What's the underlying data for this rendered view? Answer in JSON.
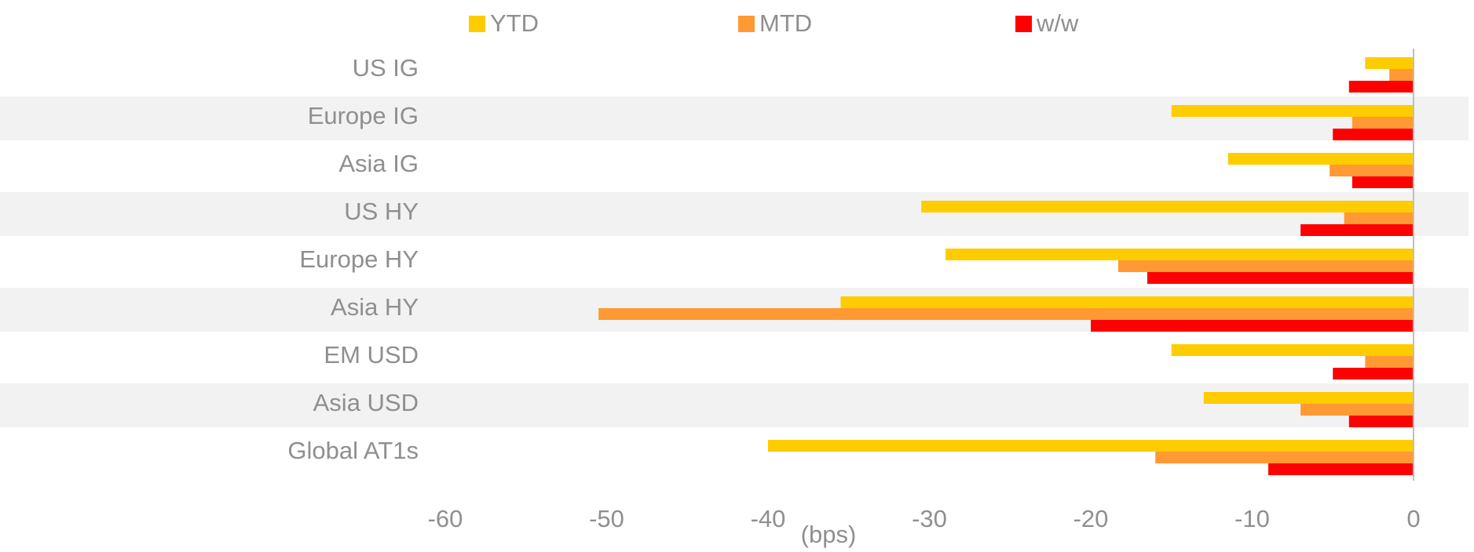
{
  "chart_data": {
    "type": "bar",
    "orientation": "horizontal",
    "categories": [
      "US IG",
      "Europe IG",
      "Asia IG",
      "US HY",
      "Europe HY",
      "Asia HY",
      "EM USD",
      "Asia USD",
      "Global AT1s"
    ],
    "series": [
      {
        "name": "YTD",
        "color": "#ffcc00",
        "values": [
          -3,
          -15,
          -11.5,
          -30.5,
          -29,
          -35.5,
          -15,
          -13,
          -40
        ]
      },
      {
        "name": "MTD",
        "color": "#ff9933",
        "values": [
          -1.5,
          -3.8,
          -5.2,
          -4.3,
          -18.3,
          -50.5,
          -3,
          -7,
          -16
        ]
      },
      {
        "name": "w/w",
        "color": "#ff0000",
        "values": [
          -4,
          -5,
          -3.8,
          -7,
          -16.5,
          -20,
          -5,
          -4,
          -9
        ]
      }
    ],
    "xlabel": "(bps)",
    "xlim": [
      -60,
      0
    ],
    "xticks": [
      "-60",
      "-50",
      "-40",
      "-30",
      "-20",
      "-10",
      "0"
    ],
    "legend_position": "top",
    "row_banding": true,
    "band_color": "#f2f2f2",
    "zero_line_color": "#bfbfbf"
  }
}
